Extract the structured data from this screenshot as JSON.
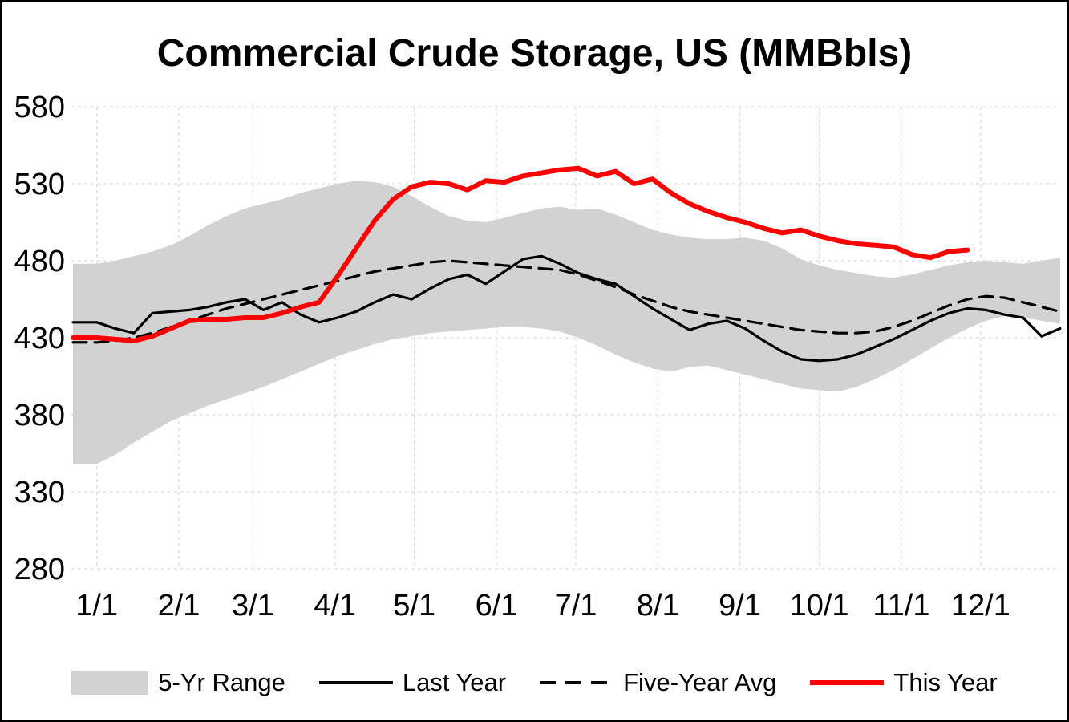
{
  "chart_data": {
    "type": "line",
    "title": "Commercial Crude Storage, US (MMBbls)",
    "xlabel": "",
    "ylabel": "",
    "ylim": [
      280,
      580
    ],
    "ytick_step": 50,
    "y_tick_labels": [
      "280",
      "330",
      "380",
      "430",
      "480",
      "530",
      "580"
    ],
    "x_tick_labels": [
      "1/1",
      "2/1",
      "3/1",
      "4/1",
      "5/1",
      "6/1",
      "7/1",
      "8/1",
      "9/1",
      "10/1",
      "11/1",
      "12/1"
    ],
    "month_start_days": [
      0,
      31,
      59,
      90,
      120,
      151,
      181,
      212,
      243,
      273,
      304,
      334
    ],
    "week_step_days": 7,
    "grid": true,
    "grid_color": "#dcdcdc",
    "legend_position": "bottom",
    "series": [
      {
        "name": "5-Yr Range",
        "type": "band",
        "color": "#d2d2d2",
        "low": [
          348,
          354,
          362,
          369,
          376,
          381,
          386,
          390,
          394,
          398,
          403,
          408,
          413,
          418,
          422,
          426,
          429,
          431,
          433,
          434,
          435,
          436,
          437,
          437,
          436,
          434,
          430,
          425,
          419,
          414,
          410,
          408,
          411,
          412,
          409,
          406,
          403,
          400,
          397,
          396,
          395,
          398,
          403,
          409,
          416,
          423,
          430,
          436,
          441,
          444,
          443,
          441,
          439
        ],
        "high": [
          478,
          480,
          483,
          486,
          490,
          496,
          503,
          509,
          514,
          517,
          520,
          524,
          527,
          530,
          532,
          531,
          528,
          522,
          515,
          509,
          506,
          505,
          508,
          511,
          514,
          515,
          513,
          514,
          510,
          505,
          500,
          497,
          495,
          494,
          494,
          495,
          493,
          488,
          481,
          477,
          474,
          472,
          470,
          469,
          471,
          474,
          477,
          479,
          480,
          479,
          478,
          480,
          482
        ]
      },
      {
        "name": "Last Year",
        "type": "line",
        "color": "#000000",
        "line_style": "solid",
        "values": [
          440,
          436,
          433,
          446,
          447,
          448,
          450,
          453,
          455,
          448,
          453,
          445,
          440,
          443,
          447,
          453,
          458,
          455,
          462,
          468,
          471,
          465,
          473,
          481,
          483,
          478,
          472,
          468,
          465,
          457,
          449,
          442,
          435,
          439,
          441,
          436,
          428,
          421,
          416,
          415,
          416,
          419,
          424,
          429,
          435,
          441,
          446,
          449,
          448,
          445,
          443,
          431,
          436
        ]
      },
      {
        "name": "Five-Year Avg",
        "type": "line",
        "color": "#000000",
        "line_style": "dashed",
        "values": [
          427,
          428,
          430,
          433,
          437,
          441,
          445,
          449,
          452,
          455,
          458,
          461,
          464,
          467,
          470,
          473,
          475,
          477,
          479,
          480,
          479,
          478,
          477,
          476,
          475,
          474,
          471,
          467,
          463,
          458,
          454,
          450,
          447,
          445,
          443,
          441,
          439,
          437,
          435,
          434,
          433,
          433,
          434,
          437,
          441,
          446,
          451,
          455,
          457,
          456,
          453,
          450,
          447
        ]
      },
      {
        "name": "This Year",
        "type": "line",
        "color": "#ff0000",
        "line_style": "thick",
        "values": [
          430,
          429,
          428,
          431,
          436,
          441,
          442,
          442,
          443,
          443,
          446,
          450,
          453,
          470,
          488,
          506,
          520,
          528,
          531,
          530,
          526,
          532,
          531,
          535,
          537,
          539,
          540,
          535,
          538,
          530,
          533,
          524,
          517,
          512,
          508,
          505,
          501,
          498,
          500,
          496,
          493,
          491,
          490,
          489,
          484,
          482,
          486,
          487
        ]
      }
    ]
  }
}
